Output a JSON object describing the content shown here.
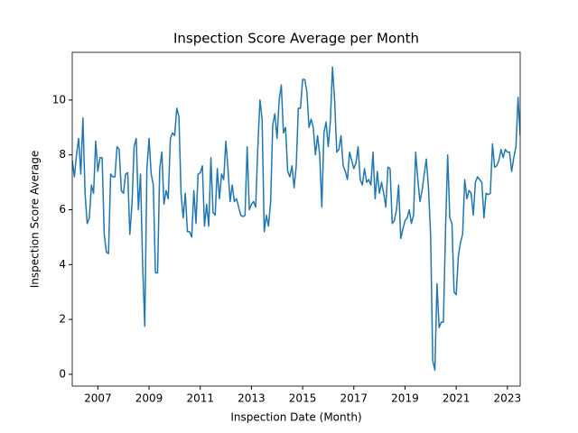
{
  "chart_data": {
    "type": "line",
    "title": "Inspection Score Average per Month",
    "xlabel": "Inspection Date (Month)",
    "ylabel": "Inspection Score Average",
    "color": "#1f77b4",
    "x": [
      "2006-01",
      "2006-02",
      "2006-03",
      "2006-04",
      "2006-05",
      "2006-06",
      "2006-07",
      "2006-08",
      "2006-09",
      "2006-10",
      "2006-11",
      "2006-12",
      "2007-01",
      "2007-02",
      "2007-03",
      "2007-04",
      "2007-05",
      "2007-06",
      "2007-07",
      "2007-08",
      "2007-09",
      "2007-10",
      "2007-11",
      "2007-12",
      "2008-01",
      "2008-02",
      "2008-03",
      "2008-04",
      "2008-05",
      "2008-06",
      "2008-07",
      "2008-08",
      "2008-09",
      "2008-10",
      "2008-11",
      "2008-12",
      "2009-01",
      "2009-02",
      "2009-03",
      "2009-04",
      "2009-05",
      "2009-06",
      "2009-07",
      "2009-08",
      "2009-09",
      "2009-10",
      "2009-11",
      "2009-12",
      "2010-01",
      "2010-02",
      "2010-03",
      "2010-04",
      "2010-05",
      "2010-06",
      "2010-07",
      "2010-08",
      "2010-09",
      "2010-10",
      "2010-11",
      "2010-12",
      "2011-01",
      "2011-02",
      "2011-03",
      "2011-04",
      "2011-05",
      "2011-06",
      "2011-07",
      "2011-08",
      "2011-09",
      "2011-10",
      "2011-11",
      "2011-12",
      "2012-01",
      "2012-02",
      "2012-03",
      "2012-04",
      "2012-05",
      "2012-06",
      "2012-07",
      "2012-08",
      "2012-09",
      "2012-10",
      "2012-11",
      "2012-12",
      "2013-01",
      "2013-02",
      "2013-03",
      "2013-04",
      "2013-05",
      "2013-06",
      "2013-07",
      "2013-08",
      "2013-09",
      "2013-10",
      "2013-11",
      "2013-12",
      "2014-01",
      "2014-02",
      "2014-03",
      "2014-04",
      "2014-05",
      "2014-06",
      "2014-07",
      "2014-08",
      "2014-09",
      "2014-10",
      "2014-11",
      "2014-12",
      "2015-01",
      "2015-02",
      "2015-03",
      "2015-04",
      "2015-05",
      "2015-06",
      "2015-07",
      "2015-08",
      "2015-09",
      "2015-10",
      "2015-11",
      "2015-12",
      "2016-01",
      "2016-02",
      "2016-03",
      "2016-04",
      "2016-05",
      "2016-06",
      "2016-07",
      "2016-08",
      "2016-09",
      "2016-10",
      "2016-11",
      "2016-12",
      "2017-01",
      "2017-02",
      "2017-03",
      "2017-04",
      "2017-05",
      "2017-06",
      "2017-07",
      "2017-08",
      "2017-09",
      "2017-10",
      "2017-11",
      "2017-12",
      "2018-01",
      "2018-02",
      "2018-03",
      "2018-04",
      "2018-05",
      "2018-06",
      "2018-07",
      "2018-08",
      "2018-09",
      "2018-10",
      "2018-11",
      "2018-12",
      "2019-01",
      "2019-02",
      "2019-03",
      "2019-04",
      "2019-05",
      "2019-06",
      "2019-07",
      "2019-08",
      "2019-09",
      "2019-10",
      "2019-11",
      "2019-12",
      "2020-01",
      "2020-02",
      "2020-03",
      "2020-04",
      "2020-05",
      "2020-06",
      "2020-07",
      "2020-08",
      "2020-09",
      "2020-10",
      "2020-11",
      "2020-12",
      "2021-01",
      "2021-02",
      "2021-03",
      "2021-04",
      "2021-05",
      "2021-06",
      "2021-07",
      "2021-08",
      "2021-09",
      "2021-10",
      "2021-11",
      "2021-12",
      "2022-01",
      "2022-02",
      "2022-03",
      "2022-04",
      "2022-05",
      "2022-06",
      "2022-07",
      "2022-08",
      "2022-09",
      "2022-10",
      "2022-11",
      "2022-12",
      "2023-01",
      "2023-02",
      "2023-03",
      "2023-04",
      "2023-05",
      "2023-06",
      "2023-07"
    ],
    "values": [
      7.8,
      7.2,
      8.0,
      8.6,
      7.3,
      9.35,
      6.6,
      5.5,
      5.7,
      6.9,
      6.6,
      8.5,
      7.4,
      7.9,
      7.9,
      5.1,
      4.45,
      4.4,
      7.3,
      7.2,
      7.2,
      8.3,
      8.2,
      6.7,
      6.6,
      7.3,
      7.35,
      5.1,
      6.2,
      8.3,
      8.6,
      6.0,
      7.3,
      4.0,
      1.75,
      7.5,
      8.6,
      7.3,
      6.9,
      3.7,
      3.7,
      7.5,
      8.1,
      6.2,
      6.7,
      6.4,
      8.6,
      8.8,
      8.7,
      9.7,
      9.4,
      6.6,
      5.7,
      6.6,
      5.2,
      5.2,
      5.0,
      6.7,
      5.5,
      7.3,
      7.35,
      7.6,
      5.4,
      6.2,
      5.4,
      7.9,
      5.9,
      5.8,
      7.5,
      6.4,
      7.3,
      7.1,
      8.5,
      7.5,
      6.3,
      6.9,
      6.3,
      6.4,
      6.1,
      5.8,
      5.75,
      5.8,
      8.3,
      6.0,
      6.2,
      6.3,
      6.1,
      8.3,
      10.0,
      9.3,
      5.2,
      5.8,
      5.4,
      6.3,
      9.1,
      9.5,
      8.6,
      10.0,
      10.55,
      8.8,
      9.0,
      7.4,
      7.2,
      7.6,
      6.8,
      7.6,
      9.7,
      9.7,
      10.75,
      10.75,
      10.3,
      9.0,
      9.3,
      9.0,
      8.0,
      8.7,
      8.0,
      6.1,
      8.8,
      9.2,
      8.3,
      9.2,
      11.2,
      10.0,
      8.1,
      8.2,
      8.7,
      7.6,
      7.4,
      7.1,
      8.1,
      7.8,
      7.5,
      7.7,
      8.3,
      7.1,
      6.9,
      7.5,
      7.0,
      7.1,
      6.9,
      8.1,
      6.4,
      7.4,
      6.6,
      7.0,
      6.6,
      6.1,
      7.55,
      7.5,
      5.5,
      5.6,
      6.0,
      6.9,
      4.95,
      5.3,
      5.6,
      5.7,
      6.0,
      5.5,
      5.8,
      8.1,
      7.1,
      6.3,
      6.7,
      7.3,
      7.85,
      6.8,
      5.1,
      0.5,
      0.15,
      3.3,
      1.7,
      1.9,
      1.9,
      5.3,
      8.0,
      5.7,
      5.5,
      3.0,
      2.9,
      4.3,
      4.8,
      5.1,
      7.1,
      6.4,
      6.7,
      6.6,
      5.8,
      7.0,
      7.2,
      7.1,
      7.0,
      5.7,
      6.6,
      6.55,
      6.6,
      8.4,
      7.55,
      7.6,
      7.8,
      8.2,
      7.9,
      8.2,
      8.1,
      8.1,
      7.4,
      7.9,
      8.3,
      10.1,
      8.7
    ],
    "xticks": [
      2007,
      2009,
      2011,
      2013,
      2015,
      2017,
      2019,
      2021,
      2023
    ],
    "ylim": [
      -0.43,
      11.74
    ],
    "yticks": [
      0,
      2,
      4,
      6,
      8,
      10
    ],
    "grid": false
  }
}
